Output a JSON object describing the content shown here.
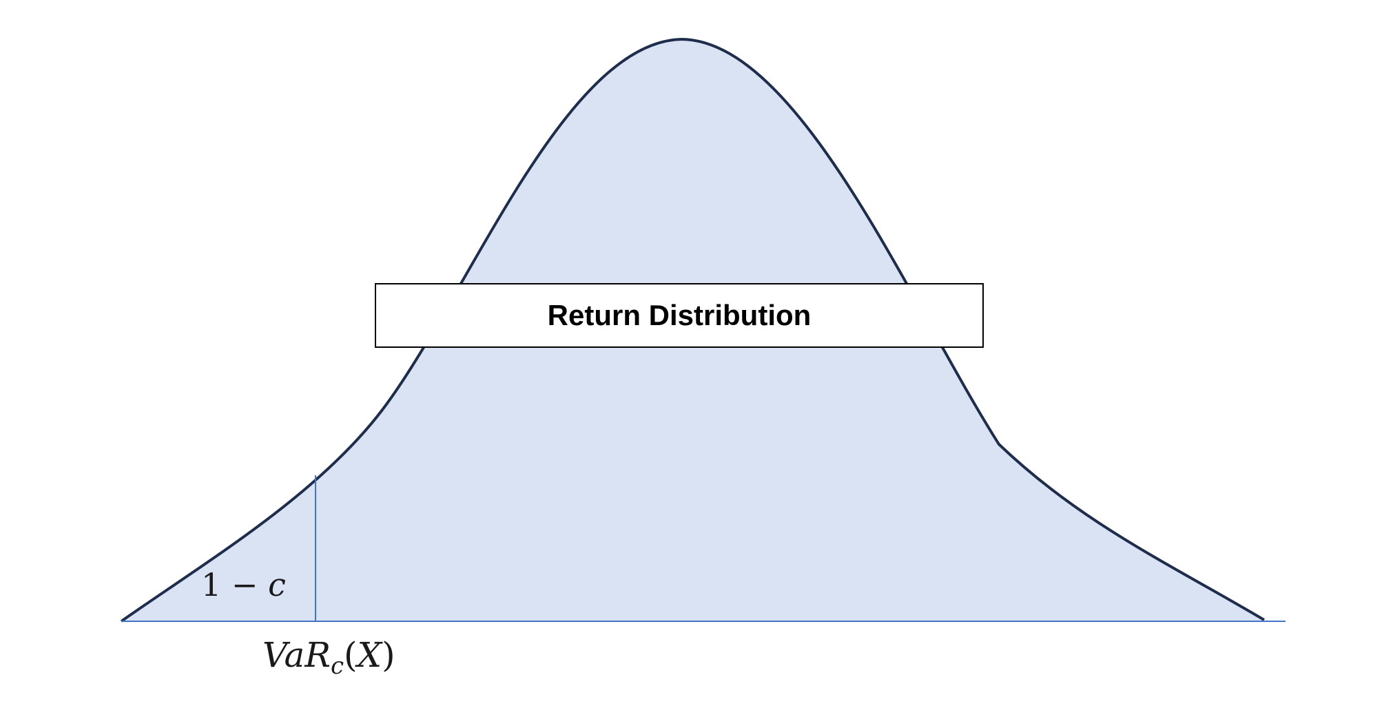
{
  "diagram": {
    "title": "Return Distribution",
    "tail_area_label": {
      "number": "1",
      "operator": "−",
      "variable": "c"
    },
    "var_label": {
      "prefix": "VaR",
      "subscript": "c",
      "open_paren": "(",
      "argument": "X",
      "close_paren": ")"
    },
    "colors": {
      "curve_fill": "#dae3f3",
      "curve_stroke": "#1f2d4d",
      "axis_line": "#4472c4",
      "title_border": "#000000"
    }
  }
}
